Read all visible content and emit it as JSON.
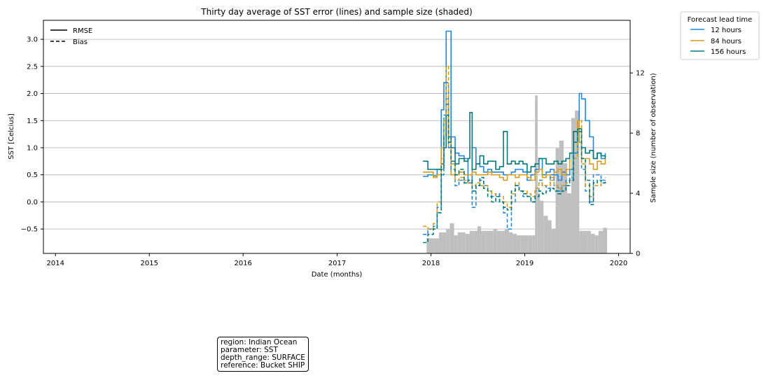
{
  "chart_data": {
    "type": "line",
    "title": "Thirty day average of SST error (lines) and sample size (shaded)",
    "xlabel": "Date (months)",
    "ylabel": "SST [Celcius]",
    "y2label": "Sample size (number of observation)",
    "x_ticks": [
      "2014",
      "2015",
      "2016",
      "2017",
      "2018",
      "2019",
      "2020"
    ],
    "y_ticks": [
      "−0.5",
      "0.0",
      "0.5",
      "1.0",
      "1.5",
      "2.0",
      "2.5",
      "3.0"
    ],
    "y2_ticks": [
      "0",
      "4",
      "8",
      "12"
    ],
    "xlim": [
      "2013-11-15",
      "2020-02-15"
    ],
    "ylim": [
      -0.95,
      3.35
    ],
    "y2lim": [
      0,
      15.5
    ],
    "grid": "horizontal",
    "style_legend": {
      "placement": "top-left",
      "items": [
        {
          "label": "RMSE",
          "dash": "solid"
        },
        {
          "label": "Bias",
          "dash": "dashed"
        }
      ]
    },
    "series_legend": {
      "title": "Forecast lead time",
      "placement": "outside-top-right",
      "items": [
        {
          "label": "12 hours",
          "color": "#1f88e5"
        },
        {
          "label": "84 hours",
          "color": "#d89c1a"
        },
        {
          "label": "156 hours",
          "color": "#007a7a"
        }
      ]
    },
    "sample_size_color": "#bfbfbf",
    "sample_size": {
      "x": [
        "2017-12-15",
        "2018-01-01",
        "2018-01-15",
        "2018-02-01",
        "2018-02-15",
        "2018-03-01",
        "2018-03-15",
        "2018-04-01",
        "2018-04-15",
        "2018-05-01",
        "2018-05-15",
        "2018-06-01",
        "2018-06-15",
        "2018-07-01",
        "2018-07-15",
        "2018-08-01",
        "2018-08-15",
        "2018-09-01",
        "2018-09-15",
        "2018-10-01",
        "2018-10-15",
        "2018-11-01",
        "2018-11-15",
        "2018-12-01",
        "2018-12-15",
        "2019-01-01",
        "2019-01-15",
        "2019-02-01",
        "2019-02-10",
        "2019-02-20",
        "2019-03-01",
        "2019-03-15",
        "2019-04-01",
        "2019-04-15",
        "2019-05-01",
        "2019-05-15",
        "2019-06-01",
        "2019-06-15",
        "2019-07-01",
        "2019-07-15",
        "2019-08-01",
        "2019-08-15",
        "2019-09-01",
        "2019-09-15",
        "2019-10-01",
        "2019-10-15",
        "2019-11-01"
      ],
      "values": [
        1.0,
        1.0,
        1.0,
        1.4,
        1.4,
        1.6,
        2.0,
        1.2,
        1.4,
        1.4,
        1.3,
        1.5,
        1.5,
        1.8,
        1.5,
        1.5,
        1.5,
        1.6,
        1.5,
        1.5,
        1.6,
        1.4,
        1.3,
        1.2,
        1.2,
        1.2,
        1.2,
        1.2,
        10.5,
        4.0,
        3.5,
        2.5,
        2.2,
        1.6,
        7.0,
        7.5,
        6.0,
        4.0,
        9.0,
        9.5,
        1.5,
        1.5,
        1.5,
        1.3,
        1.2,
        1.5,
        1.7
      ]
    },
    "series": [
      {
        "name": "12 hours",
        "metric": "RMSE",
        "color": "#1f88e5",
        "x": [
          "2017-12-01",
          "2017-12-20",
          "2018-01-10",
          "2018-01-25",
          "2018-02-10",
          "2018-02-20",
          "2018-03-01",
          "2018-03-10",
          "2018-03-20",
          "2018-04-05",
          "2018-04-20",
          "2018-05-10",
          "2018-05-25",
          "2018-06-10",
          "2018-06-25",
          "2018-07-10",
          "2018-07-25",
          "2018-08-10",
          "2018-08-25",
          "2018-09-10",
          "2018-09-25",
          "2018-10-10",
          "2018-10-25",
          "2018-11-10",
          "2018-11-25",
          "2018-12-10",
          "2018-12-25",
          "2019-01-10",
          "2019-01-25",
          "2019-02-10",
          "2019-02-25",
          "2019-03-10",
          "2019-03-25",
          "2019-04-10",
          "2019-04-25",
          "2019-05-10",
          "2019-05-25",
          "2019-06-10",
          "2019-06-25",
          "2019-07-10",
          "2019-07-25",
          "2019-08-01",
          "2019-08-10",
          "2019-08-25",
          "2019-09-10",
          "2019-09-25",
          "2019-10-10",
          "2019-10-25",
          "2019-11-10"
        ],
        "y": [
          0.47,
          0.5,
          0.48,
          0.6,
          1.7,
          2.2,
          3.15,
          3.15,
          1.2,
          0.9,
          0.85,
          0.8,
          0.35,
          1.0,
          0.7,
          0.65,
          0.55,
          0.6,
          0.55,
          0.55,
          0.55,
          0.5,
          0.5,
          0.55,
          0.6,
          0.6,
          0.55,
          0.4,
          0.5,
          0.6,
          0.8,
          0.5,
          0.55,
          0.6,
          0.5,
          0.4,
          0.55,
          0.5,
          0.6,
          0.9,
          1.5,
          2.0,
          1.9,
          1.5,
          1.2,
          0.8,
          0.9,
          0.8,
          0.9
        ]
      },
      {
        "name": "84 hours",
        "metric": "RMSE",
        "color": "#d89c1a",
        "x": [
          "2017-12-01",
          "2017-12-20",
          "2018-01-10",
          "2018-01-25",
          "2018-02-10",
          "2018-02-20",
          "2018-03-01",
          "2018-03-10",
          "2018-03-20",
          "2018-04-05",
          "2018-04-20",
          "2018-05-10",
          "2018-05-25",
          "2018-06-10",
          "2018-06-25",
          "2018-07-10",
          "2018-07-25",
          "2018-08-10",
          "2018-08-25",
          "2018-09-10",
          "2018-09-25",
          "2018-10-10",
          "2018-10-25",
          "2018-11-10",
          "2018-11-25",
          "2018-12-10",
          "2018-12-25",
          "2019-01-10",
          "2019-01-25",
          "2019-02-10",
          "2019-02-25",
          "2019-03-10",
          "2019-03-25",
          "2019-04-10",
          "2019-04-25",
          "2019-05-10",
          "2019-05-25",
          "2019-06-10",
          "2019-06-25",
          "2019-07-10",
          "2019-07-25",
          "2019-08-01",
          "2019-08-10",
          "2019-08-25",
          "2019-09-10",
          "2019-09-25",
          "2019-10-10",
          "2019-10-25",
          "2019-11-10"
        ],
        "y": [
          0.55,
          0.55,
          0.45,
          0.5,
          1.0,
          1.5,
          1.9,
          1.0,
          0.5,
          0.5,
          0.55,
          0.5,
          0.5,
          0.55,
          0.5,
          0.5,
          0.5,
          0.55,
          0.5,
          0.5,
          0.45,
          0.4,
          0.5,
          0.5,
          0.45,
          0.5,
          0.5,
          0.45,
          0.4,
          0.55,
          0.6,
          0.45,
          0.5,
          0.45,
          0.55,
          0.6,
          0.5,
          0.6,
          0.9,
          1.3,
          1.5,
          1.1,
          0.8,
          0.8,
          0.7,
          0.6,
          0.75,
          0.7,
          0.8
        ]
      },
      {
        "name": "156 hours",
        "metric": "RMSE",
        "color": "#007a7a",
        "x": [
          "2017-12-01",
          "2017-12-20",
          "2018-01-10",
          "2018-01-25",
          "2018-02-10",
          "2018-02-20",
          "2018-03-01",
          "2018-03-10",
          "2018-03-20",
          "2018-04-05",
          "2018-04-20",
          "2018-05-10",
          "2018-05-25",
          "2018-06-01",
          "2018-06-10",
          "2018-06-25",
          "2018-07-10",
          "2018-07-25",
          "2018-08-10",
          "2018-08-25",
          "2018-09-10",
          "2018-09-25",
          "2018-10-10",
          "2018-10-25",
          "2018-11-10",
          "2018-11-25",
          "2018-12-10",
          "2018-12-25",
          "2019-01-10",
          "2019-01-25",
          "2019-02-10",
          "2019-02-25",
          "2019-03-10",
          "2019-03-25",
          "2019-04-10",
          "2019-04-25",
          "2019-05-10",
          "2019-05-25",
          "2019-06-10",
          "2019-06-25",
          "2019-07-10",
          "2019-07-25",
          "2019-08-10",
          "2019-08-25",
          "2019-09-10",
          "2019-09-25",
          "2019-10-10",
          "2019-10-25",
          "2019-11-10"
        ],
        "y": [
          0.75,
          0.6,
          0.6,
          0.6,
          0.7,
          1.0,
          1.8,
          1.2,
          1.0,
          0.7,
          0.8,
          0.75,
          0.8,
          1.65,
          0.6,
          0.7,
          0.85,
          0.7,
          0.75,
          0.75,
          0.6,
          0.65,
          1.3,
          0.7,
          0.75,
          0.7,
          0.75,
          0.7,
          0.55,
          0.65,
          0.7,
          0.8,
          0.8,
          0.7,
          0.7,
          0.75,
          0.7,
          0.75,
          0.8,
          0.9,
          1.3,
          1.35,
          1.0,
          0.9,
          0.95,
          0.8,
          0.9,
          0.85,
          0.8
        ]
      },
      {
        "name": "12 hours",
        "metric": "Bias",
        "color": "#1f88e5",
        "x": [
          "2017-12-01",
          "2017-12-20",
          "2018-01-10",
          "2018-01-25",
          "2018-02-10",
          "2018-02-20",
          "2018-03-01",
          "2018-03-10",
          "2018-03-20",
          "2018-04-05",
          "2018-04-20",
          "2018-05-10",
          "2018-05-25",
          "2018-06-10",
          "2018-06-25",
          "2018-07-10",
          "2018-07-25",
          "2018-08-10",
          "2018-08-25",
          "2018-09-10",
          "2018-09-25",
          "2018-10-10",
          "2018-10-25",
          "2018-11-10",
          "2018-11-25",
          "2018-12-10",
          "2018-12-25",
          "2019-01-10",
          "2019-01-25",
          "2019-02-10",
          "2019-02-25",
          "2019-03-10",
          "2019-03-25",
          "2019-04-10",
          "2019-04-25",
          "2019-05-10",
          "2019-05-25",
          "2019-06-10",
          "2019-06-25",
          "2019-07-10",
          "2019-07-25",
          "2019-08-10",
          "2019-08-25",
          "2019-09-10",
          "2019-09-25",
          "2019-10-10",
          "2019-10-25",
          "2019-11-10"
        ],
        "y": [
          -0.6,
          -0.5,
          -0.45,
          -0.1,
          0.5,
          1.6,
          2.2,
          1.0,
          0.6,
          0.3,
          0.4,
          0.35,
          0.4,
          -0.1,
          0.3,
          0.4,
          0.3,
          0.2,
          0.1,
          0.15,
          0.0,
          -0.2,
          -0.5,
          0.0,
          0.3,
          0.2,
          0.1,
          0.1,
          0.0,
          0.2,
          0.4,
          0.3,
          0.25,
          0.5,
          0.3,
          0.2,
          0.3,
          0.4,
          0.45,
          0.9,
          1.3,
          0.6,
          0.2,
          0.0,
          0.5,
          0.5,
          0.4,
          0.45
        ]
      },
      {
        "name": "84 hours",
        "metric": "Bias",
        "color": "#d89c1a",
        "x": [
          "2017-12-01",
          "2017-12-20",
          "2018-01-10",
          "2018-01-25",
          "2018-02-10",
          "2018-02-20",
          "2018-03-01",
          "2018-03-10",
          "2018-03-20",
          "2018-04-05",
          "2018-04-20",
          "2018-05-10",
          "2018-05-25",
          "2018-06-10",
          "2018-06-25",
          "2018-07-10",
          "2018-07-25",
          "2018-08-10",
          "2018-08-25",
          "2018-09-10",
          "2018-09-25",
          "2018-10-10",
          "2018-10-25",
          "2018-11-10",
          "2018-11-25",
          "2018-12-10",
          "2018-12-25",
          "2019-01-10",
          "2019-01-25",
          "2019-02-10",
          "2019-02-25",
          "2019-03-10",
          "2019-03-25",
          "2019-04-10",
          "2019-04-25",
          "2019-05-10",
          "2019-05-25",
          "2019-06-10",
          "2019-06-25",
          "2019-07-10",
          "2019-07-25",
          "2019-08-10",
          "2019-08-25",
          "2019-09-10",
          "2019-09-25",
          "2019-10-10",
          "2019-10-25",
          "2019-11-10"
        ],
        "y": [
          -0.45,
          -0.5,
          -0.4,
          0.0,
          0.8,
          1.5,
          2.5,
          1.1,
          0.7,
          0.4,
          0.45,
          0.4,
          0.35,
          0.3,
          0.35,
          0.3,
          0.3,
          0.2,
          0.15,
          0.1,
          0.1,
          0.0,
          -0.1,
          0.15,
          0.35,
          0.2,
          0.2,
          0.15,
          0.1,
          0.25,
          0.35,
          0.3,
          0.3,
          0.4,
          0.3,
          0.25,
          0.3,
          0.35,
          0.4,
          0.8,
          1.5,
          0.7,
          0.3,
          0.1,
          0.3,
          0.3,
          0.35,
          0.4
        ]
      },
      {
        "name": "156 hours",
        "metric": "Bias",
        "color": "#007a7a",
        "x": [
          "2017-12-01",
          "2017-12-20",
          "2018-01-10",
          "2018-01-25",
          "2018-02-10",
          "2018-02-20",
          "2018-03-01",
          "2018-03-10",
          "2018-03-20",
          "2018-04-05",
          "2018-04-20",
          "2018-05-10",
          "2018-05-25",
          "2018-06-10",
          "2018-06-25",
          "2018-07-10",
          "2018-07-25",
          "2018-08-10",
          "2018-08-25",
          "2018-09-10",
          "2018-09-25",
          "2018-10-10",
          "2018-10-25",
          "2018-11-10",
          "2018-11-25",
          "2018-12-10",
          "2018-12-25",
          "2019-01-10",
          "2019-01-25",
          "2019-02-10",
          "2019-02-25",
          "2019-03-10",
          "2019-03-25",
          "2019-04-10",
          "2019-04-25",
          "2019-05-10",
          "2019-05-25",
          "2019-06-10",
          "2019-06-25",
          "2019-07-10",
          "2019-07-25",
          "2019-08-10",
          "2019-08-25",
          "2019-09-10",
          "2019-09-25",
          "2019-10-10",
          "2019-10-25",
          "2019-11-10"
        ],
        "y": [
          -0.75,
          -0.6,
          -0.5,
          -0.2,
          0.6,
          1.2,
          1.6,
          1.1,
          0.75,
          0.5,
          0.6,
          0.35,
          0.4,
          0.2,
          0.3,
          0.45,
          0.25,
          0.1,
          0.0,
          0.1,
          0.0,
          -0.1,
          -0.15,
          0.2,
          0.3,
          0.2,
          0.15,
          0.1,
          0.0,
          0.1,
          0.2,
          0.15,
          0.2,
          0.25,
          0.2,
          0.15,
          0.2,
          0.3,
          0.4,
          1.1,
          1.3,
          0.8,
          0.4,
          -0.05,
          0.35,
          0.4,
          0.35,
          0.4
        ]
      }
    ]
  },
  "info_box": {
    "lines": [
      "region: Indian Ocean",
      "parameter: SST",
      "depth_range: SURFACE",
      "reference: Bucket SHIP"
    ]
  }
}
